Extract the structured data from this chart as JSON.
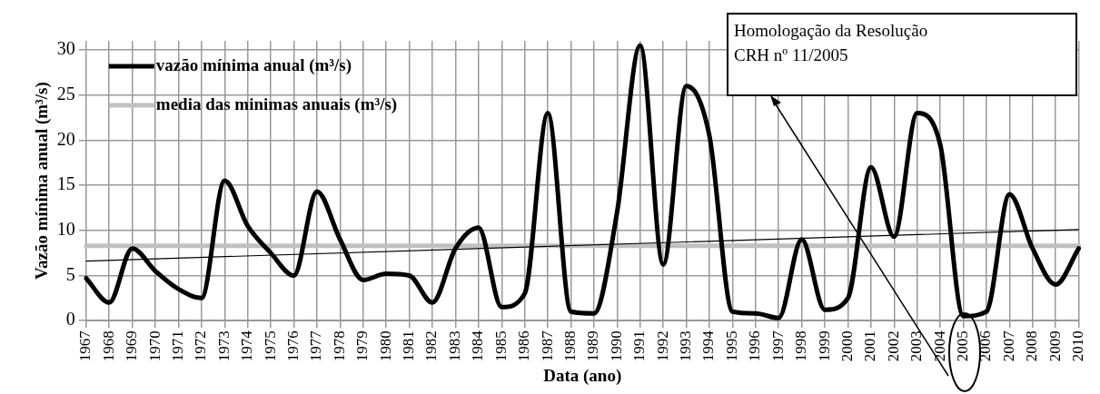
{
  "chart_data": {
    "type": "line",
    "xlabel": "Data (ano)",
    "ylabel": "Vazão mínima anual (m³/s)",
    "categories": [
      "1967",
      "1968",
      "1969",
      "1970",
      "1971",
      "1972",
      "1973",
      "1974",
      "1975",
      "1976",
      "1977",
      "1978",
      "1979",
      "1980",
      "1981",
      "1982",
      "1983",
      "1984",
      "1985",
      "1986",
      "1987",
      "1988",
      "1989",
      "1990",
      "1991",
      "1992",
      "1993",
      "1994",
      "1995",
      "1996",
      "1997",
      "1998",
      "1999",
      "2000",
      "2001",
      "2002",
      "2003",
      "2004",
      "2005",
      "2006",
      "2007",
      "2008",
      "2009",
      "2010"
    ],
    "series": [
      {
        "name": "vazão mínima anual (m³/s)",
        "color": "#000000",
        "values": [
          4.7,
          2,
          8,
          5.5,
          3.5,
          2.5,
          15.5,
          10.5,
          7.5,
          5,
          14.3,
          9,
          4.5,
          5.2,
          5,
          2,
          8,
          10.3,
          1.5,
          3,
          23,
          1,
          0.8,
          12,
          30.5,
          6.2,
          26,
          20.5,
          1,
          0.8,
          0.3,
          9,
          1.2,
          2.5,
          17,
          9.3,
          23,
          19.5,
          0.5,
          1,
          14,
          8,
          4,
          8
        ]
      },
      {
        "name": "media das minimas anuais (m³/s)",
        "color": "#c0c0c0",
        "values": [
          8.3,
          8.3,
          8.3,
          8.3,
          8.3,
          8.3,
          8.3,
          8.3,
          8.3,
          8.3,
          8.3,
          8.3,
          8.3,
          8.3,
          8.3,
          8.3,
          8.3,
          8.3,
          8.3,
          8.3,
          8.3,
          8.3,
          8.3,
          8.3,
          8.3,
          8.3,
          8.3,
          8.3,
          8.3,
          8.3,
          8.3,
          8.3,
          8.3,
          8.3,
          8.3,
          8.3,
          8.3,
          8.3,
          8.3,
          8.3,
          8.3,
          8.3,
          8.3,
          8.3
        ]
      },
      {
        "type": "line",
        "color": "#000000",
        "values": [
          6.6,
          null,
          null,
          null,
          null,
          null,
          null,
          null,
          null,
          null,
          null,
          null,
          null,
          null,
          null,
          null,
          null,
          null,
          null,
          null,
          null,
          null,
          null,
          null,
          null,
          null,
          null,
          null,
          null,
          null,
          null,
          null,
          null,
          null,
          null,
          null,
          null,
          null,
          null,
          null,
          null,
          null,
          null,
          10.1
        ]
      }
    ],
    "ylim": [
      0,
      31
    ],
    "yticks": [
      0,
      5,
      10,
      15,
      20,
      25,
      30
    ],
    "grid": true,
    "legend": "top left",
    "marker": "none",
    "line_style": "solid",
    "annotations": [
      "Homologação da Resolução\nCRH nº 11/2005"
    ]
  }
}
